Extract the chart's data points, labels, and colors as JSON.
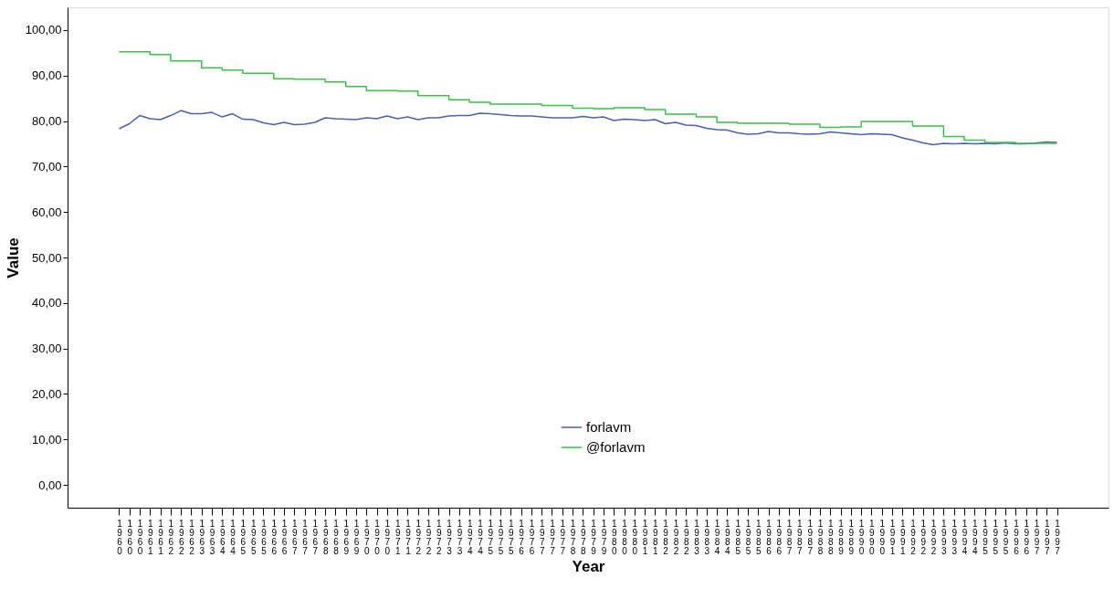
{
  "chart_data": {
    "type": "line",
    "xlabel": "Year",
    "ylabel": "Value",
    "categories": [
      "1960",
      "1960",
      "1960",
      "1961",
      "1961",
      "1962",
      "1962",
      "1962",
      "1963",
      "1963",
      "1964",
      "1964",
      "1965",
      "1965",
      "1965",
      "1966",
      "1966",
      "1967",
      "1967",
      "1967",
      "1968",
      "1968",
      "1969",
      "1969",
      "1970",
      "1970",
      "1970",
      "1971",
      "1971",
      "1972",
      "1972",
      "1972",
      "1973",
      "1973",
      "1974",
      "1974",
      "1975",
      "1975",
      "1975",
      "1976",
      "1976",
      "1977",
      "1977",
      "1977",
      "1978",
      "1978",
      "1979",
      "1979",
      "1980",
      "1980",
      "1980",
      "1981",
      "1981",
      "1982",
      "1982",
      "1982",
      "1983",
      "1983",
      "1984",
      "1984",
      "1985",
      "1985",
      "1985",
      "1986",
      "1986",
      "1987",
      "1987",
      "1987",
      "1988",
      "1988",
      "1989",
      "1989",
      "1990",
      "1990",
      "1990",
      "1991",
      "1991",
      "1992",
      "1992",
      "1992",
      "1993",
      "1993",
      "1994",
      "1994",
      "1995",
      "1995",
      "1995",
      "1996",
      "1996",
      "1997",
      "1997",
      "1997"
    ],
    "series": [
      {
        "name": "forlavm",
        "color": "#4a5fb5",
        "values": [
          78.3,
          79.4,
          81.2,
          80.5,
          80.3,
          81.2,
          82.3,
          81.6,
          81.6,
          81.9,
          80.9,
          81.6,
          80.4,
          80.3,
          79.6,
          79.2,
          79.7,
          79.2,
          79.3,
          79.7,
          80.7,
          80.5,
          80.4,
          80.3,
          80.7,
          80.5,
          81.1,
          80.5,
          80.9,
          80.3,
          80.7,
          80.7,
          81.1,
          81.2,
          81.2,
          81.7,
          81.6,
          81.4,
          81.2,
          81.1,
          81.1,
          80.9,
          80.7,
          80.7,
          80.7,
          81.0,
          80.7,
          80.9,
          80.1,
          80.4,
          80.3,
          80.1,
          80.3,
          79.4,
          79.7,
          79.1,
          79.0,
          78.4,
          78.1,
          78.0,
          77.4,
          77.1,
          77.2,
          77.7,
          77.4,
          77.4,
          77.2,
          77.1,
          77.2,
          77.6,
          77.4,
          77.2,
          77.0,
          77.2,
          77.1,
          77.0,
          76.3,
          75.8,
          75.2,
          74.8,
          75.1,
          75.0,
          75.1,
          75.0,
          75.1,
          75.0,
          75.2,
          75.0,
          75.0,
          75.2,
          75.4,
          75.3
        ]
      },
      {
        "name": "@forlavm",
        "color": "#3cc04c",
        "type": "step",
        "values": [
          95.2,
          95.2,
          95.2,
          94.6,
          94.6,
          93.2,
          93.2,
          93.2,
          91.7,
          91.7,
          91.2,
          91.2,
          90.5,
          90.5,
          90.5,
          89.3,
          89.3,
          89.2,
          89.2,
          89.2,
          88.6,
          88.6,
          87.6,
          87.6,
          86.7,
          86.7,
          86.7,
          86.6,
          86.6,
          85.6,
          85.6,
          85.6,
          84.7,
          84.7,
          84.1,
          84.1,
          83.7,
          83.7,
          83.7,
          83.7,
          83.7,
          83.4,
          83.4,
          83.4,
          82.8,
          82.8,
          82.7,
          82.7,
          82.9,
          82.9,
          82.9,
          82.5,
          82.5,
          81.5,
          81.5,
          81.5,
          80.9,
          80.9,
          79.7,
          79.7,
          79.5,
          79.5,
          79.5,
          79.5,
          79.5,
          79.3,
          79.3,
          79.3,
          78.6,
          78.6,
          78.7,
          78.7,
          79.9,
          79.9,
          79.9,
          79.9,
          79.9,
          78.9,
          78.9,
          78.9,
          76.6,
          76.6,
          75.8,
          75.8,
          75.3,
          75.3,
          75.3,
          75.1,
          75.1,
          75.1,
          75.1,
          75.1
        ]
      }
    ],
    "ylim": [
      -5,
      105
    ],
    "yticks": [
      {
        "value": 0,
        "label": "0,00"
      },
      {
        "value": 10,
        "label": "10,00"
      },
      {
        "value": 20,
        "label": "20,00"
      },
      {
        "value": 30,
        "label": "30,00"
      },
      {
        "value": 40,
        "label": "40,00"
      },
      {
        "value": 50,
        "label": "50,00"
      },
      {
        "value": 60,
        "label": "60,00"
      },
      {
        "value": 70,
        "label": "70,00"
      },
      {
        "value": 80,
        "label": "80,00"
      },
      {
        "value": 90,
        "label": "90,00"
      },
      {
        "value": 100,
        "label": "100,00"
      }
    ],
    "legend": "bottom",
    "grid": false,
    "marker": "none",
    "line_style": "solid"
  }
}
